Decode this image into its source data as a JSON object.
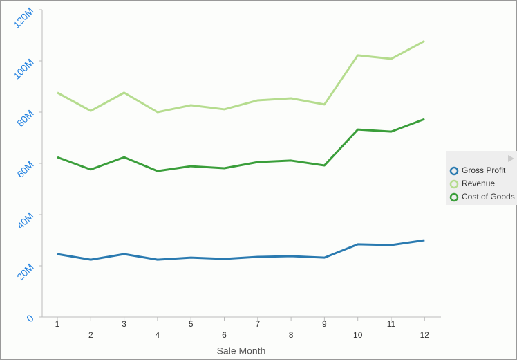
{
  "chart_data": {
    "type": "line",
    "x_label": "Sale Month",
    "categories": [
      "1",
      "2",
      "3",
      "4",
      "5",
      "6",
      "7",
      "8",
      "9",
      "10",
      "11",
      "12"
    ],
    "series": [
      {
        "name": "Gross Profit",
        "color": "#2a7ab0",
        "values": [
          24600000,
          22400000,
          24600000,
          22400000,
          23200000,
          22700000,
          23500000,
          23800000,
          23200000,
          28400000,
          28100000,
          30000000
        ]
      },
      {
        "name": "Revenue",
        "color": "#b5dc8e",
        "values": [
          87600000,
          80500000,
          87600000,
          80000000,
          82700000,
          81100000,
          84600000,
          85400000,
          83000000,
          102200000,
          100800000,
          107800000
        ]
      },
      {
        "name": "Cost of Goods",
        "color": "#3a9e3a",
        "values": [
          62400000,
          57600000,
          62400000,
          57000000,
          58900000,
          58100000,
          60500000,
          61100000,
          59200000,
          73200000,
          72400000,
          77300000
        ]
      }
    ],
    "ylim": [
      0,
      120000000
    ],
    "yticks": [
      0,
      {
        "value": 20000000,
        "label": "20M"
      },
      {
        "value": 40000000,
        "label": "40M"
      },
      {
        "value": 60000000,
        "label": "60M"
      },
      {
        "value": 80000000,
        "label": "80M"
      },
      {
        "value": 100000000,
        "label": "100M"
      },
      {
        "value": 120000000,
        "label": "120M"
      }
    ],
    "legend_position": "right"
  }
}
